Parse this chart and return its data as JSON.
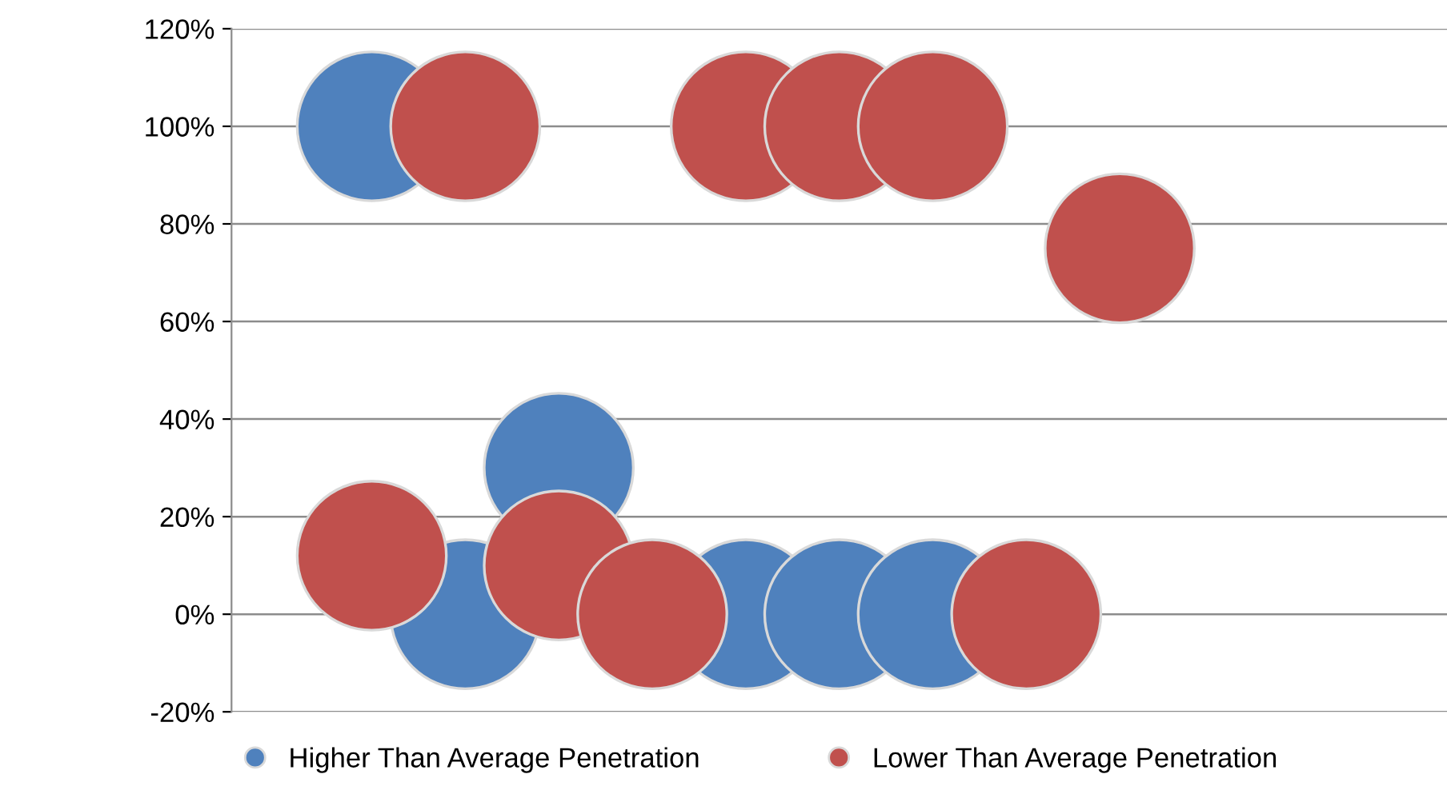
{
  "chart_data": {
    "type": "bubble",
    "categories": [
      null,
      null,
      null,
      null,
      null,
      null,
      null,
      null,
      null,
      null,
      null,
      null,
      null
    ],
    "series": [
      {
        "name": "Higher Than Average Penetration",
        "color": "#4f81bd",
        "values": [
          null,
          100,
          0,
          30,
          null,
          0,
          0,
          0,
          null,
          null,
          null,
          null,
          null
        ],
        "sizes": [
          null,
          1,
          1,
          1,
          null,
          1,
          1,
          1,
          null,
          null,
          null,
          null,
          null
        ]
      },
      {
        "name": "Lower Than Average Penetration",
        "color": "#c0504d",
        "values": [
          null,
          12,
          100,
          10,
          0,
          100,
          100,
          100,
          0,
          75,
          null,
          null,
          null
        ],
        "sizes": [
          null,
          1,
          1,
          1,
          1,
          1,
          1,
          1,
          1,
          1,
          null,
          null,
          null
        ]
      }
    ],
    "ylim": [
      -20,
      120
    ],
    "yticks": [
      {
        "value": -20,
        "label": "-20%"
      },
      {
        "value": 0,
        "label": "0%"
      },
      {
        "value": 20,
        "label": "20%"
      },
      {
        "value": 40,
        "label": "40%"
      },
      {
        "value": 60,
        "label": "60%"
      },
      {
        "value": 80,
        "label": "80%"
      },
      {
        "value": 100,
        "label": "100%"
      },
      {
        "value": 120,
        "label": "120%"
      }
    ],
    "grid": "y",
    "legend": "bottom"
  }
}
